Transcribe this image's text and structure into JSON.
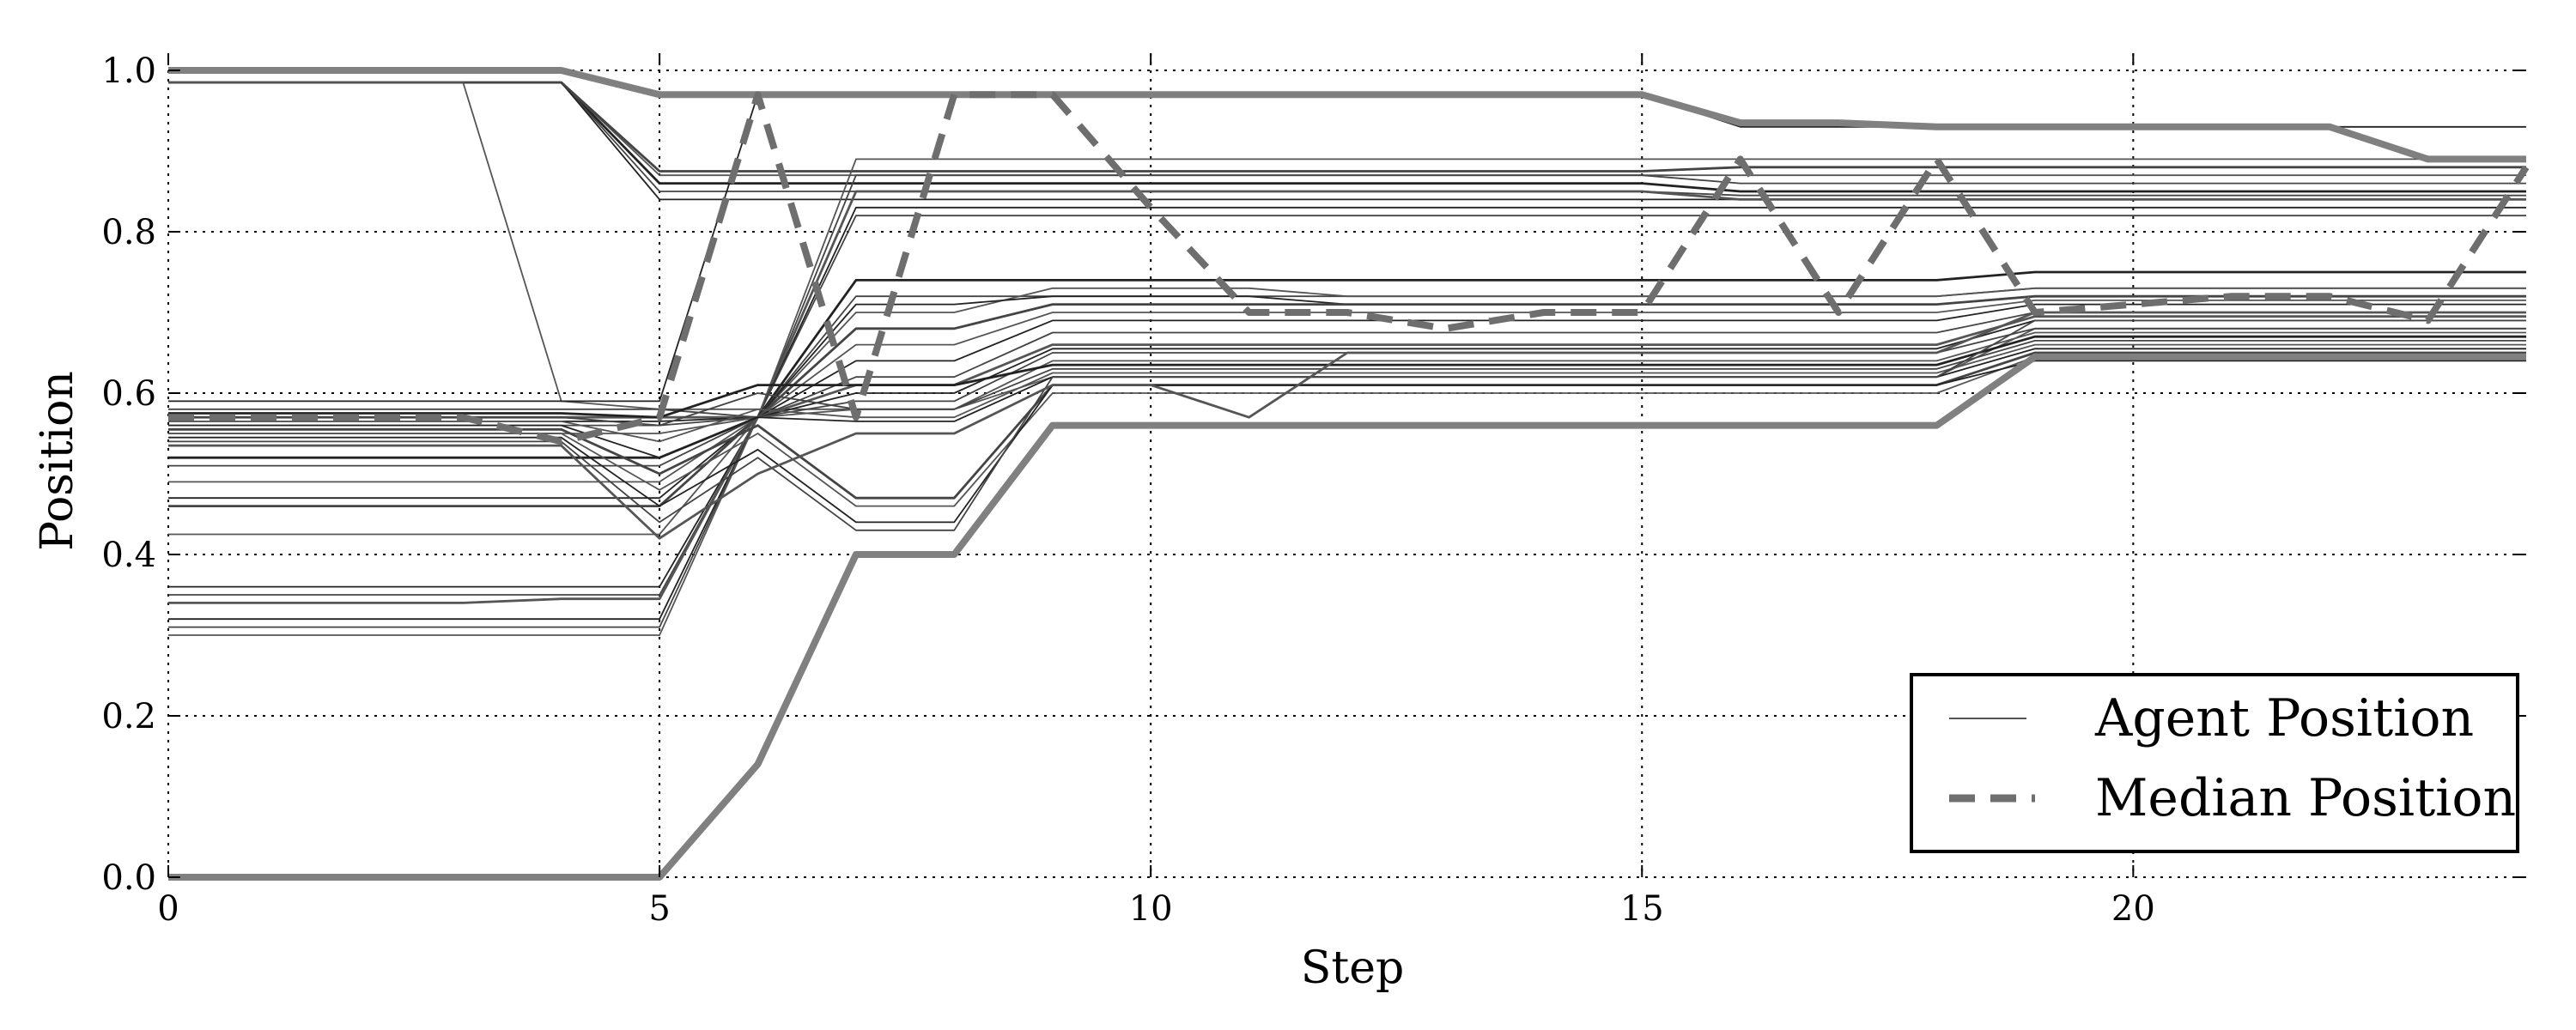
{
  "chart_data": {
    "type": "line",
    "xlabel": "Step",
    "ylabel": "Position",
    "xlim": [
      0,
      24
    ],
    "ylim": [
      0,
      1.0
    ],
    "xticks": [
      0,
      5,
      10,
      15,
      20
    ],
    "yticks": [
      0.0,
      0.2,
      0.4,
      0.6,
      0.8,
      1.0
    ],
    "xtick_labels": [
      "0",
      "5",
      "10",
      "15",
      "20"
    ],
    "ytick_labels": [
      "0.0",
      "0.2",
      "0.4",
      "0.6",
      "0.8",
      "1.0"
    ],
    "grid": true,
    "grid_style": "dotted",
    "legend_position": "lower-right",
    "legend": [
      {
        "label": "Agent Position",
        "style": "solid-thin"
      },
      {
        "label": "Median Position",
        "style": "dashed"
      }
    ],
    "colors": {
      "agent": "#333333",
      "agent_highlight": "#808080",
      "median": "#6e6e6e"
    },
    "x": [
      0,
      1,
      2,
      3,
      4,
      5,
      6,
      7,
      8,
      9,
      10,
      11,
      12,
      13,
      14,
      15,
      16,
      17,
      18,
      19,
      20,
      21,
      22,
      23,
      24
    ],
    "highlight_agents": [
      {
        "values": [
          1.0,
          1.0,
          1.0,
          1.0,
          1.0,
          0.97,
          0.97,
          0.97,
          0.97,
          0.97,
          0.97,
          0.97,
          0.97,
          0.97,
          0.97,
          0.97,
          0.935,
          0.935,
          0.93,
          0.93,
          0.93,
          0.93,
          0.93,
          0.89,
          0.89
        ]
      },
      {
        "values": [
          0.0,
          0.0,
          0.0,
          0.0,
          0.0,
          0.0,
          0.14,
          0.4,
          0.4,
          0.56,
          0.56,
          0.56,
          0.56,
          0.56,
          0.56,
          0.56,
          0.56,
          0.56,
          0.56,
          0.645,
          0.645,
          0.645,
          0.645,
          0.645,
          0.645
        ]
      }
    ],
    "agents": [
      {
        "values": [
          0.985,
          0.985,
          0.985,
          0.985,
          0.985,
          0.86,
          0.86,
          0.86,
          0.86,
          0.86,
          0.86,
          0.86,
          0.86,
          0.86,
          0.86,
          0.86,
          0.85,
          0.85,
          0.85,
          0.85,
          0.85,
          0.85,
          0.85,
          0.85,
          0.85
        ]
      },
      {
        "values": [
          0.985,
          0.985,
          0.985,
          0.985,
          0.985,
          0.85,
          0.85,
          0.85,
          0.85,
          0.85,
          0.85,
          0.85,
          0.85,
          0.85,
          0.85,
          0.85,
          0.845,
          0.845,
          0.845,
          0.845,
          0.845,
          0.845,
          0.845,
          0.845,
          0.845
        ]
      },
      {
        "values": [
          0.985,
          0.985,
          0.985,
          0.985,
          0.985,
          0.87,
          0.87,
          0.87,
          0.87,
          0.87,
          0.87,
          0.87,
          0.87,
          0.87,
          0.87,
          0.87,
          0.87,
          0.87,
          0.87,
          0.87,
          0.87,
          0.87,
          0.87,
          0.87,
          0.87
        ]
      },
      {
        "values": [
          0.985,
          0.985,
          0.985,
          0.985,
          0.985,
          0.84,
          0.84,
          0.84,
          0.84,
          0.84,
          0.84,
          0.84,
          0.84,
          0.84,
          0.84,
          0.84,
          0.84,
          0.84,
          0.84,
          0.84,
          0.84,
          0.84,
          0.84,
          0.84,
          0.84
        ]
      },
      {
        "values": [
          0.985,
          0.985,
          0.985,
          0.985,
          0.985,
          0.875,
          0.875,
          0.875,
          0.875,
          0.875,
          0.875,
          0.875,
          0.875,
          0.875,
          0.875,
          0.875,
          0.88,
          0.88,
          0.88,
          0.88,
          0.88,
          0.88,
          0.88,
          0.88,
          0.88
        ]
      },
      {
        "values": [
          0.985,
          0.985,
          0.985,
          0.985,
          0.59,
          0.58,
          0.58,
          0.58,
          0.58,
          0.62,
          0.62,
          0.62,
          0.62,
          0.62,
          0.62,
          0.62,
          0.62,
          0.62,
          0.62,
          0.68,
          0.68,
          0.68,
          0.68,
          0.68,
          0.68
        ]
      },
      {
        "values": [
          0.59,
          0.59,
          0.59,
          0.59,
          0.59,
          0.59,
          0.97,
          0.97,
          0.97,
          0.97,
          0.97,
          0.97,
          0.97,
          0.97,
          0.97,
          0.97,
          0.93,
          0.93,
          0.93,
          0.93,
          0.93,
          0.93,
          0.93,
          0.93,
          0.93
        ]
      },
      {
        "values": [
          0.58,
          0.58,
          0.58,
          0.58,
          0.58,
          0.58,
          0.57,
          0.87,
          0.87,
          0.87,
          0.87,
          0.87,
          0.87,
          0.87,
          0.87,
          0.87,
          0.86,
          0.86,
          0.86,
          0.86,
          0.86,
          0.86,
          0.86,
          0.86,
          0.86
        ]
      },
      {
        "values": [
          0.57,
          0.57,
          0.57,
          0.57,
          0.57,
          0.57,
          0.57,
          0.85,
          0.85,
          0.85,
          0.85,
          0.85,
          0.85,
          0.85,
          0.85,
          0.85,
          0.84,
          0.84,
          0.84,
          0.84,
          0.84,
          0.84,
          0.84,
          0.84,
          0.84
        ]
      },
      {
        "values": [
          0.565,
          0.565,
          0.565,
          0.565,
          0.565,
          0.565,
          0.57,
          0.83,
          0.83,
          0.83,
          0.83,
          0.83,
          0.83,
          0.83,
          0.83,
          0.83,
          0.83,
          0.83,
          0.83,
          0.83,
          0.83,
          0.83,
          0.83,
          0.83,
          0.83
        ]
      },
      {
        "values": [
          0.56,
          0.56,
          0.56,
          0.56,
          0.56,
          0.56,
          0.57,
          0.82,
          0.82,
          0.82,
          0.82,
          0.82,
          0.82,
          0.82,
          0.82,
          0.82,
          0.82,
          0.82,
          0.82,
          0.82,
          0.82,
          0.82,
          0.82,
          0.82,
          0.82
        ]
      },
      {
        "values": [
          0.55,
          0.55,
          0.55,
          0.55,
          0.55,
          0.55,
          0.57,
          0.89,
          0.89,
          0.89,
          0.89,
          0.89,
          0.89,
          0.89,
          0.89,
          0.89,
          0.89,
          0.89,
          0.89,
          0.89,
          0.89,
          0.89,
          0.89,
          0.89,
          0.89
        ]
      },
      {
        "values": [
          0.52,
          0.52,
          0.52,
          0.52,
          0.52,
          0.52,
          0.57,
          0.74,
          0.74,
          0.74,
          0.74,
          0.74,
          0.74,
          0.74,
          0.74,
          0.74,
          0.74,
          0.74,
          0.74,
          0.75,
          0.75,
          0.75,
          0.75,
          0.75,
          0.75
        ]
      },
      {
        "values": [
          0.51,
          0.51,
          0.51,
          0.51,
          0.51,
          0.51,
          0.57,
          0.72,
          0.72,
          0.72,
          0.72,
          0.72,
          0.72,
          0.72,
          0.72,
          0.72,
          0.72,
          0.72,
          0.72,
          0.73,
          0.73,
          0.73,
          0.73,
          0.73,
          0.73
        ]
      },
      {
        "values": [
          0.49,
          0.49,
          0.49,
          0.49,
          0.49,
          0.49,
          0.57,
          0.7,
          0.7,
          0.73,
          0.73,
          0.73,
          0.72,
          0.72,
          0.72,
          0.72,
          0.72,
          0.72,
          0.72,
          0.73,
          0.73,
          0.73,
          0.73,
          0.73,
          0.73
        ]
      },
      {
        "values": [
          0.47,
          0.47,
          0.47,
          0.47,
          0.47,
          0.47,
          0.57,
          0.71,
          0.71,
          0.72,
          0.72,
          0.72,
          0.71,
          0.71,
          0.71,
          0.71,
          0.71,
          0.71,
          0.71,
          0.72,
          0.72,
          0.72,
          0.72,
          0.72,
          0.72
        ]
      },
      {
        "values": [
          0.46,
          0.46,
          0.46,
          0.46,
          0.46,
          0.46,
          0.57,
          0.68,
          0.68,
          0.71,
          0.71,
          0.71,
          0.71,
          0.71,
          0.71,
          0.71,
          0.71,
          0.71,
          0.71,
          0.72,
          0.72,
          0.72,
          0.72,
          0.72,
          0.72
        ]
      },
      {
        "values": [
          0.425,
          0.425,
          0.425,
          0.425,
          0.425,
          0.425,
          0.57,
          0.66,
          0.66,
          0.7,
          0.7,
          0.7,
          0.7,
          0.7,
          0.7,
          0.7,
          0.7,
          0.7,
          0.7,
          0.715,
          0.715,
          0.715,
          0.715,
          0.715,
          0.715
        ]
      },
      {
        "values": [
          0.36,
          0.36,
          0.36,
          0.36,
          0.36,
          0.36,
          0.57,
          0.64,
          0.64,
          0.69,
          0.69,
          0.69,
          0.69,
          0.69,
          0.69,
          0.69,
          0.69,
          0.69,
          0.69,
          0.71,
          0.71,
          0.71,
          0.71,
          0.71,
          0.71
        ]
      },
      {
        "values": [
          0.35,
          0.35,
          0.35,
          0.35,
          0.35,
          0.35,
          0.57,
          0.62,
          0.62,
          0.675,
          0.675,
          0.675,
          0.675,
          0.675,
          0.675,
          0.675,
          0.675,
          0.675,
          0.675,
          0.7,
          0.7,
          0.7,
          0.7,
          0.7,
          0.7
        ]
      },
      {
        "values": [
          0.34,
          0.34,
          0.34,
          0.34,
          0.345,
          0.345,
          0.57,
          0.61,
          0.61,
          0.66,
          0.66,
          0.66,
          0.66,
          0.66,
          0.66,
          0.66,
          0.66,
          0.66,
          0.66,
          0.695,
          0.695,
          0.695,
          0.695,
          0.695,
          0.695
        ]
      },
      {
        "values": [
          0.32,
          0.32,
          0.32,
          0.32,
          0.32,
          0.32,
          0.57,
          0.6,
          0.6,
          0.655,
          0.655,
          0.655,
          0.655,
          0.655,
          0.655,
          0.655,
          0.655,
          0.655,
          0.655,
          0.69,
          0.69,
          0.69,
          0.69,
          0.69,
          0.69
        ]
      },
      {
        "values": [
          0.31,
          0.31,
          0.31,
          0.31,
          0.31,
          0.31,
          0.57,
          0.59,
          0.59,
          0.65,
          0.65,
          0.65,
          0.65,
          0.65,
          0.65,
          0.65,
          0.65,
          0.65,
          0.65,
          0.68,
          0.68,
          0.68,
          0.68,
          0.68,
          0.68
        ]
      },
      {
        "values": [
          0.3,
          0.3,
          0.3,
          0.3,
          0.3,
          0.3,
          0.57,
          0.58,
          0.58,
          0.64,
          0.64,
          0.64,
          0.64,
          0.64,
          0.64,
          0.64,
          0.64,
          0.64,
          0.64,
          0.675,
          0.675,
          0.675,
          0.675,
          0.675,
          0.675
        ]
      },
      {
        "values": [
          0.575,
          0.575,
          0.575,
          0.575,
          0.575,
          0.57,
          0.61,
          0.61,
          0.61,
          0.635,
          0.635,
          0.635,
          0.635,
          0.635,
          0.635,
          0.635,
          0.635,
          0.635,
          0.635,
          0.67,
          0.67,
          0.67,
          0.67,
          0.67,
          0.67
        ]
      },
      {
        "values": [
          0.57,
          0.57,
          0.57,
          0.57,
          0.57,
          0.56,
          0.6,
          0.58,
          0.58,
          0.63,
          0.63,
          0.63,
          0.63,
          0.63,
          0.63,
          0.63,
          0.63,
          0.63,
          0.63,
          0.665,
          0.665,
          0.665,
          0.665,
          0.665,
          0.665
        ]
      },
      {
        "values": [
          0.565,
          0.565,
          0.565,
          0.565,
          0.565,
          0.54,
          0.58,
          0.57,
          0.57,
          0.625,
          0.625,
          0.625,
          0.625,
          0.625,
          0.625,
          0.625,
          0.625,
          0.625,
          0.625,
          0.66,
          0.66,
          0.66,
          0.66,
          0.66,
          0.66
        ]
      },
      {
        "values": [
          0.56,
          0.56,
          0.56,
          0.56,
          0.56,
          0.52,
          0.57,
          0.565,
          0.565,
          0.62,
          0.62,
          0.62,
          0.62,
          0.62,
          0.62,
          0.62,
          0.62,
          0.62,
          0.62,
          0.655,
          0.655,
          0.655,
          0.655,
          0.655,
          0.655
        ]
      },
      {
        "values": [
          0.555,
          0.555,
          0.555,
          0.555,
          0.555,
          0.5,
          0.56,
          0.47,
          0.47,
          0.61,
          0.61,
          0.61,
          0.61,
          0.61,
          0.61,
          0.61,
          0.61,
          0.61,
          0.61,
          0.65,
          0.65,
          0.65,
          0.65,
          0.65,
          0.65
        ]
      },
      {
        "values": [
          0.55,
          0.55,
          0.55,
          0.55,
          0.55,
          0.48,
          0.55,
          0.46,
          0.46,
          0.6,
          0.6,
          0.6,
          0.6,
          0.6,
          0.6,
          0.6,
          0.6,
          0.6,
          0.6,
          0.645,
          0.645,
          0.645,
          0.645,
          0.645,
          0.645
        ]
      },
      {
        "values": [
          0.545,
          0.545,
          0.545,
          0.545,
          0.545,
          0.46,
          0.53,
          0.44,
          0.44,
          0.61,
          0.61,
          0.61,
          0.61,
          0.61,
          0.61,
          0.61,
          0.61,
          0.61,
          0.61,
          0.64,
          0.64,
          0.64,
          0.64,
          0.64,
          0.64
        ]
      },
      {
        "values": [
          0.54,
          0.54,
          0.54,
          0.54,
          0.54,
          0.44,
          0.52,
          0.43,
          0.43,
          0.62,
          0.62,
          0.62,
          0.62,
          0.62,
          0.62,
          0.62,
          0.62,
          0.62,
          0.62,
          0.69,
          0.69,
          0.69,
          0.69,
          0.69,
          0.69
        ]
      },
      {
        "values": [
          0.535,
          0.535,
          0.535,
          0.535,
          0.535,
          0.42,
          0.5,
          0.55,
          0.55,
          0.61,
          0.61,
          0.57,
          0.65,
          0.65,
          0.65,
          0.65,
          0.65,
          0.65,
          0.65,
          0.7,
          0.7,
          0.7,
          0.7,
          0.7,
          0.7
        ]
      }
    ],
    "median": {
      "name": "Median Position",
      "values": [
        0.57,
        0.57,
        0.57,
        0.57,
        0.54,
        0.57,
        0.97,
        0.57,
        0.97,
        0.97,
        0.83,
        0.7,
        0.7,
        0.68,
        0.7,
        0.7,
        0.89,
        0.7,
        0.89,
        0.7,
        0.71,
        0.72,
        0.72,
        0.69,
        0.88
      ]
    }
  }
}
